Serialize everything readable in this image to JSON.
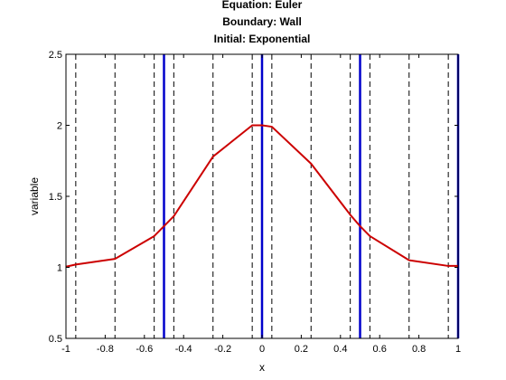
{
  "chart_data": {
    "type": "line",
    "title": [
      "Equation: Euler",
      "Boundary: Wall",
      "Initial: Exponential"
    ],
    "xlabel": "x",
    "ylabel": "variable",
    "xlim": [
      -1,
      1
    ],
    "ylim": [
      0.5,
      2.5
    ],
    "xticks": [
      -1,
      -0.8,
      -0.6,
      -0.4,
      -0.2,
      0,
      0.2,
      0.4,
      0.6,
      0.8,
      1
    ],
    "xtick_labels": [
      "-1",
      "-0.8",
      "-0.6",
      "-0.4",
      "-0.2",
      "0",
      "0.2",
      "0.4",
      "0.6",
      "0.8",
      "1"
    ],
    "yticks": [
      0.5,
      1,
      1.5,
      2,
      2.5
    ],
    "ytick_labels": [
      "0.5",
      "1",
      "1.5",
      "2",
      "2.5"
    ],
    "grid": false,
    "dashed_vlines": [
      -0.95,
      -0.75,
      -0.55,
      -0.45,
      -0.25,
      -0.05,
      0.05,
      0.25,
      0.45,
      0.55,
      0.75,
      0.95
    ],
    "solid_vlines": [
      -0.5,
      0,
      0.5,
      1
    ],
    "series": [
      {
        "x": [
          -1,
          -0.95,
          -0.75,
          -0.55,
          -0.45,
          -0.25,
          -0.05,
          0,
          0.05,
          0.25,
          0.45,
          0.5,
          0.55,
          0.75,
          0.95,
          1
        ],
        "values": [
          1.005,
          1.02,
          1.06,
          1.22,
          1.36,
          1.78,
          2.0,
          2.0,
          1.99,
          1.73,
          1.37,
          1.29,
          1.22,
          1.05,
          1.01,
          1.01
        ],
        "color": "#cc0000"
      }
    ],
    "colors": {
      "dashed": "#000000",
      "solid": "#0000cc",
      "axes": "#000000"
    }
  }
}
